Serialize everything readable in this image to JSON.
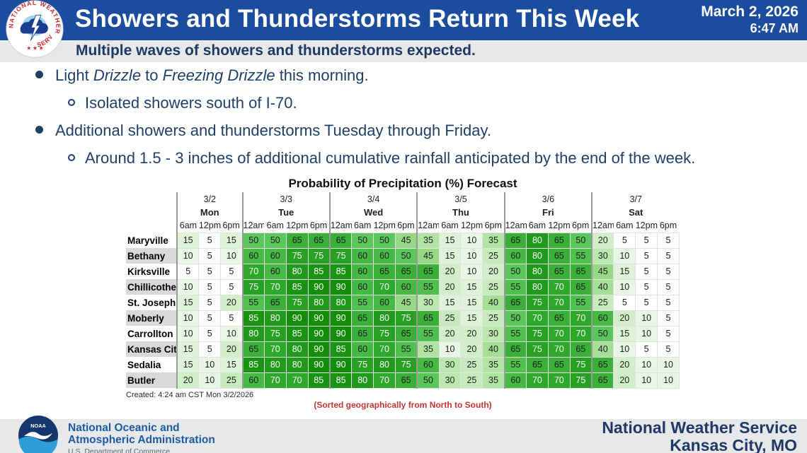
{
  "header": {
    "title": "Showers and Thunderstorms Return This Week",
    "date": "March 2, 2026",
    "time": "6:47 AM",
    "subtitle": "Multiple waves of showers and thunderstorms expected."
  },
  "bullets": [
    {
      "level": 1,
      "segments": [
        {
          "t": "Light "
        },
        {
          "t": "Drizzle",
          "i": true
        },
        {
          "t": " to "
        },
        {
          "t": "Freezing Drizzle",
          "i": true
        },
        {
          "t": " this morning."
        }
      ]
    },
    {
      "level": 2,
      "segments": [
        {
          "t": "Isolated showers south of I-70."
        }
      ]
    },
    {
      "level": 1,
      "segments": [
        {
          "t": "Additional showers and thunderstorms Tuesday through Friday."
        }
      ]
    },
    {
      "level": 2,
      "segments": [
        {
          "t": "Around 1.5 - 3 inches of additional cumulative rainfall anticipated by the end of the week."
        }
      ]
    }
  ],
  "chart_data": {
    "type": "heatmap",
    "title": "Probability of Precipitation (%) Forecast",
    "units": "percent",
    "sorted_note": "(Sorted geographically from North to South)",
    "created": "Created: 4:24 am CST Mon 3/2/2026",
    "day_groups": [
      {
        "date": "3/2",
        "day": "Mon",
        "times": [
          "6am",
          "12pm",
          "6pm"
        ]
      },
      {
        "date": "3/3",
        "day": "Tue",
        "times": [
          "12am",
          "6am",
          "12pm",
          "6pm"
        ]
      },
      {
        "date": "3/4",
        "day": "Wed",
        "times": [
          "12am",
          "6am",
          "12pm",
          "6pm"
        ]
      },
      {
        "date": "3/5",
        "day": "Thu",
        "times": [
          "12am",
          "6am",
          "12pm",
          "6pm"
        ]
      },
      {
        "date": "3/6",
        "day": "Fri",
        "times": [
          "12am",
          "6am",
          "12pm",
          "6pm"
        ]
      },
      {
        "date": "3/7",
        "day": "Sat",
        "times": [
          "12am",
          "6am",
          "12pm",
          "6pm"
        ]
      }
    ],
    "rows": [
      {
        "city": "Maryville",
        "values": [
          15,
          5,
          15,
          50,
          50,
          65,
          65,
          65,
          50,
          50,
          45,
          35,
          15,
          10,
          35,
          65,
          80,
          65,
          50,
          20,
          5,
          5,
          5
        ]
      },
      {
        "city": "Bethany",
        "values": [
          10,
          5,
          10,
          60,
          60,
          75,
          75,
          75,
          60,
          60,
          50,
          45,
          15,
          10,
          25,
          60,
          80,
          65,
          55,
          30,
          10,
          5,
          5
        ]
      },
      {
        "city": "Kirksville",
        "values": [
          5,
          5,
          5,
          70,
          60,
          80,
          85,
          85,
          60,
          65,
          65,
          65,
          20,
          10,
          20,
          50,
          80,
          65,
          65,
          45,
          15,
          5,
          5
        ]
      },
      {
        "city": "Chillicothe",
        "values": [
          10,
          5,
          5,
          75,
          70,
          85,
          90,
          90,
          60,
          70,
          60,
          55,
          20,
          15,
          25,
          55,
          80,
          70,
          65,
          40,
          10,
          5,
          5
        ]
      },
      {
        "city": "St. Joseph",
        "values": [
          15,
          5,
          20,
          55,
          65,
          75,
          80,
          80,
          55,
          60,
          45,
          30,
          15,
          15,
          40,
          65,
          75,
          70,
          55,
          25,
          5,
          5,
          5
        ]
      },
      {
        "city": "Moberly",
        "values": [
          10,
          5,
          5,
          85,
          80,
          90,
          90,
          90,
          65,
          80,
          75,
          65,
          25,
          15,
          25,
          50,
          70,
          65,
          70,
          60,
          20,
          10,
          5
        ]
      },
      {
        "city": "Carrollton",
        "values": [
          10,
          5,
          10,
          80,
          75,
          85,
          90,
          90,
          65,
          75,
          65,
          55,
          20,
          20,
          30,
          55,
          75,
          70,
          70,
          50,
          15,
          10,
          5
        ]
      },
      {
        "city": "Kansas City",
        "values": [
          15,
          5,
          20,
          65,
          70,
          80,
          90,
          85,
          60,
          70,
          55,
          35,
          10,
          20,
          40,
          65,
          75,
          70,
          65,
          40,
          10,
          5,
          5
        ]
      },
      {
        "city": "Sedalia",
        "values": [
          15,
          10,
          15,
          85,
          80,
          80,
          90,
          90,
          75,
          80,
          75,
          60,
          30,
          25,
          35,
          55,
          65,
          65,
          75,
          65,
          20,
          10,
          10
        ]
      },
      {
        "city": "Butler",
        "values": [
          20,
          10,
          25,
          60,
          70,
          70,
          85,
          85,
          80,
          70,
          65,
          50,
          30,
          25,
          35,
          60,
          70,
          70,
          75,
          65,
          20,
          10,
          10
        ]
      }
    ],
    "color_scale": {
      "5": "#ffffff",
      "10": "#eaf7e6",
      "15": "#def3d8",
      "20": "#d3efca",
      "25": "#c8ebbd",
      "30": "#bce7af",
      "35": "#b1e3a2",
      "40": "#a5de95",
      "45": "#96d884",
      "50": "#5bc65b",
      "55": "#50c04f",
      "60": "#46ba44",
      "65": "#3ab038",
      "70": "#2ea82b",
      "75": "#27a023",
      "80": "#20991c",
      "85": "#199312",
      "90": "#128d08"
    },
    "white_text_min": 70,
    "legend_position": "none",
    "grid": true
  },
  "footer": {
    "noaa_line1": "National Oceanic and",
    "noaa_line2": "Atmospheric Administration",
    "noaa_dept": "U.S. Department of Commerce",
    "noaa_acronym": "NOAA",
    "office": "National Weather Service",
    "city": "Kansas City, MO"
  },
  "logos": {
    "nws_ring_text_top": "NATIONAL WEATHER",
    "nws_ring_text_bottom": "SERVICE"
  },
  "colors": {
    "banner_blue": "#1b4c9e",
    "navy_text": "#1f3864",
    "bullet_navy": "#1f3f66",
    "note_red": "#c53434",
    "footer_gray": "#e7e8e9",
    "noaa_blue": "#1d5aa4"
  }
}
